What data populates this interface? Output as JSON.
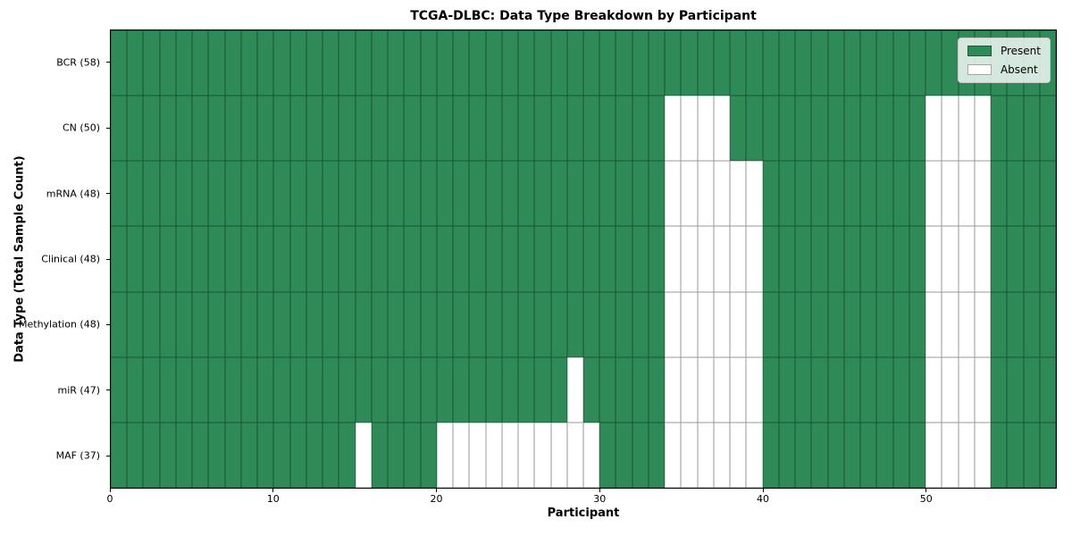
{
  "chart_data": {
    "type": "heatmap",
    "title": "TCGA-DLBC: Data Type Breakdown by Participant",
    "xlabel": "Participant",
    "ylabel": "Data Type (Total Sample Count)",
    "legend_labels": [
      "Present",
      "Absent"
    ],
    "legend_position": "upper right",
    "grid": "cell borders on",
    "colors": {
      "present": "#2e8b57",
      "absent": "#ffffff",
      "cell_border": "rgba(0,0,0,0.4)"
    },
    "n_participants": 58,
    "x_range": [
      0,
      58
    ],
    "x_ticks": [
      0,
      10,
      20,
      30,
      40,
      50
    ],
    "rows": [
      {
        "label": "BCR (58)",
        "data_type": "BCR",
        "total_samples": 58,
        "absent_participants": []
      },
      {
        "label": "CN (50)",
        "data_type": "CN",
        "total_samples": 50,
        "absent_participants": [
          34,
          35,
          36,
          37,
          50,
          51,
          52,
          53
        ]
      },
      {
        "label": "mRNA (48)",
        "data_type": "mRNA",
        "total_samples": 48,
        "absent_participants": [
          34,
          35,
          36,
          37,
          38,
          39,
          50,
          51,
          52,
          53
        ]
      },
      {
        "label": "Clinical (48)",
        "data_type": "Clinical",
        "total_samples": 48,
        "absent_participants": [
          34,
          35,
          36,
          37,
          38,
          39,
          50,
          51,
          52,
          53
        ]
      },
      {
        "label": "Methylation (48)",
        "data_type": "Methylation",
        "total_samples": 48,
        "absent_participants": [
          34,
          35,
          36,
          37,
          38,
          39,
          50,
          51,
          52,
          53
        ]
      },
      {
        "label": "miR (47)",
        "data_type": "miR",
        "total_samples": 47,
        "absent_participants": [
          28,
          34,
          35,
          36,
          37,
          38,
          39,
          50,
          51,
          52,
          53
        ]
      },
      {
        "label": "MAF (37)",
        "data_type": "MAF",
        "total_samples": 37,
        "absent_participants": [
          15,
          20,
          21,
          22,
          23,
          24,
          25,
          26,
          27,
          28,
          29,
          34,
          35,
          36,
          37,
          38,
          39,
          50,
          51,
          52,
          53
        ]
      }
    ]
  }
}
